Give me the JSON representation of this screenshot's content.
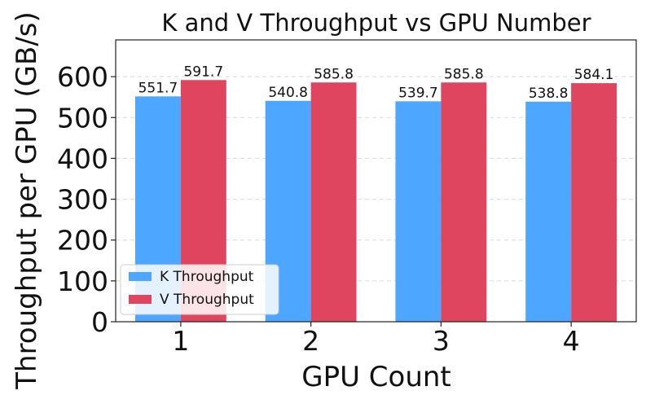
{
  "chart_data": {
    "type": "bar",
    "title": "K and V Throughput vs GPU Number",
    "xlabel": "GPU Count",
    "ylabel": "Throughput per GPU (GB/s)",
    "categories": [
      "1",
      "2",
      "3",
      "4"
    ],
    "series": [
      {
        "name": "K Throughput",
        "color": "#4da6ff",
        "values": [
          551.7,
          540.8,
          539.7,
          538.8
        ],
        "labels": [
          "551.7",
          "540.8",
          "539.7",
          "538.8"
        ]
      },
      {
        "name": "V Throughput",
        "color": "#e04560",
        "values": [
          591.7,
          585.8,
          585.8,
          584.1
        ],
        "labels": [
          "591.7",
          "585.8",
          "585.8",
          "584.1"
        ]
      }
    ],
    "ylim": [
      0,
      690
    ],
    "yticks": [
      "0",
      "100",
      "200",
      "300",
      "400",
      "500",
      "600"
    ],
    "grid": true,
    "legend_position": "lower-left"
  }
}
